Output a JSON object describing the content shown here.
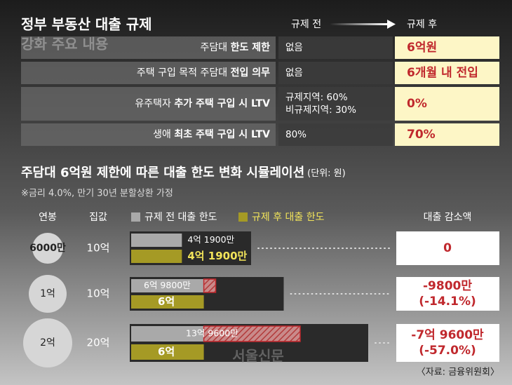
{
  "header": {
    "title": [
      "정부 부동산 대출 규제",
      "강화 주요 내용"
    ],
    "col_before": "규제 전",
    "col_after": "규제 후"
  },
  "table": {
    "rows": [
      {
        "item": [
          "주담대 ",
          "한도 제한"
        ],
        "before": [
          "없음"
        ],
        "after": "6억원"
      },
      {
        "item": [
          "주택 구입 목적 주담대 ",
          "전입 의무"
        ],
        "before": [
          "없음"
        ],
        "after": "6개월 내 전입"
      },
      {
        "item": [
          "유주택자 ",
          "추가 주택 구입 시 LTV"
        ],
        "before": [
          "규제지역: 60%",
          "비규제지역: 30%"
        ],
        "after": "0%"
      },
      {
        "item": [
          "생애 ",
          "최초 주택 구입 시 LTV"
        ],
        "before": [
          "80%"
        ],
        "after": "70%"
      }
    ]
  },
  "simulation": {
    "title": "주담대 6억원 제한에 따른 대출 한도 변화 시뮬레이션",
    "unit": "(단위: 원)",
    "note": "※금리 4.0%, 만기 30년 분할상환 가정",
    "headers": {
      "salary": "연봉",
      "house": "집값",
      "before": "규제 전 대출 한도",
      "after": "규제 후 대출 한도",
      "reduction": "대출 감소액"
    },
    "colors": {
      "before": "#a9a9a9",
      "after": "#a59a25",
      "hatch": "#c0282d"
    },
    "rows": [
      {
        "salary": "6000만",
        "house": "10억",
        "before": 41900,
        "before_label": "4억 1900만",
        "after": 41900,
        "after_label": "4억 1900만",
        "reduction": [
          "0"
        ]
      },
      {
        "salary": "1억",
        "house": "10억",
        "before": 69800,
        "before_label": "6억 9800만",
        "after": 60000,
        "after_label": "6억",
        "reduction": [
          "-9800만",
          "(-14.1%)"
        ]
      },
      {
        "salary": "2억",
        "house": "20억",
        "before": 139600,
        "before_label": "13억 9600만",
        "after": 60000,
        "after_label": "6억",
        "reduction": [
          "-7억 9600만",
          "(-57.0%)"
        ]
      }
    ]
  },
  "watermark": "서울신문",
  "source": "〈자료: 금융위원회〉"
}
